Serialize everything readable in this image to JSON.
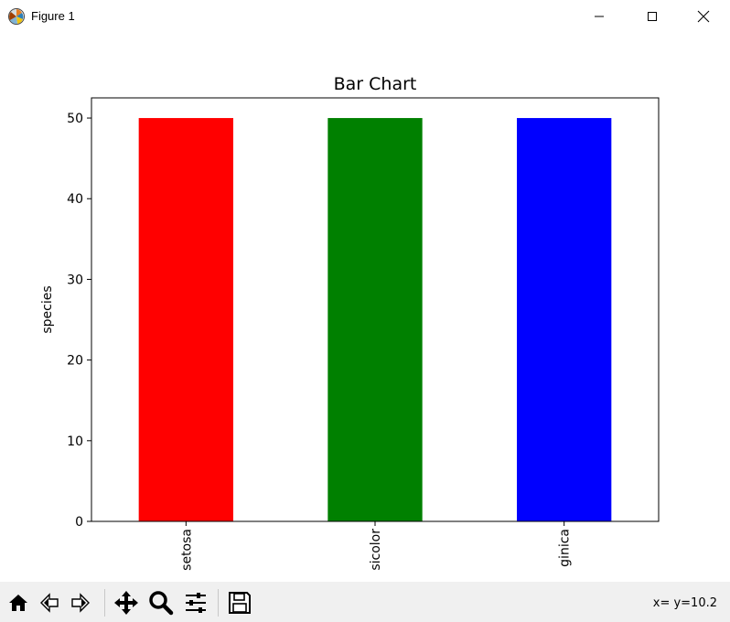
{
  "window": {
    "title": "Figure 1"
  },
  "titlebar_buttons": {
    "minimize_icon": "minimize-icon",
    "maximize_icon": "maximize-icon",
    "close_icon": "close-icon"
  },
  "toolbar": {
    "buttons": [
      "home-icon",
      "back-icon",
      "forward-icon",
      "pan-icon",
      "zoom-icon",
      "configure-subplots-icon",
      "save-icon"
    ],
    "coords_text": "x= y=10.2"
  },
  "chart_data": {
    "type": "bar",
    "title": "Bar Chart",
    "xlabel": "",
    "ylabel": "species",
    "categories": [
      "setosa",
      "versicolor",
      "virginica"
    ],
    "visible_tick_labels": [
      "setosa",
      "sicolor",
      "ginica"
    ],
    "values": [
      50,
      50,
      50
    ],
    "colors": [
      "#ff0000",
      "#008000",
      "#0000ff"
    ],
    "ylim": [
      0,
      52.5
    ],
    "yticks": [
      0,
      10,
      20,
      30,
      40,
      50
    ],
    "grid": false
  }
}
